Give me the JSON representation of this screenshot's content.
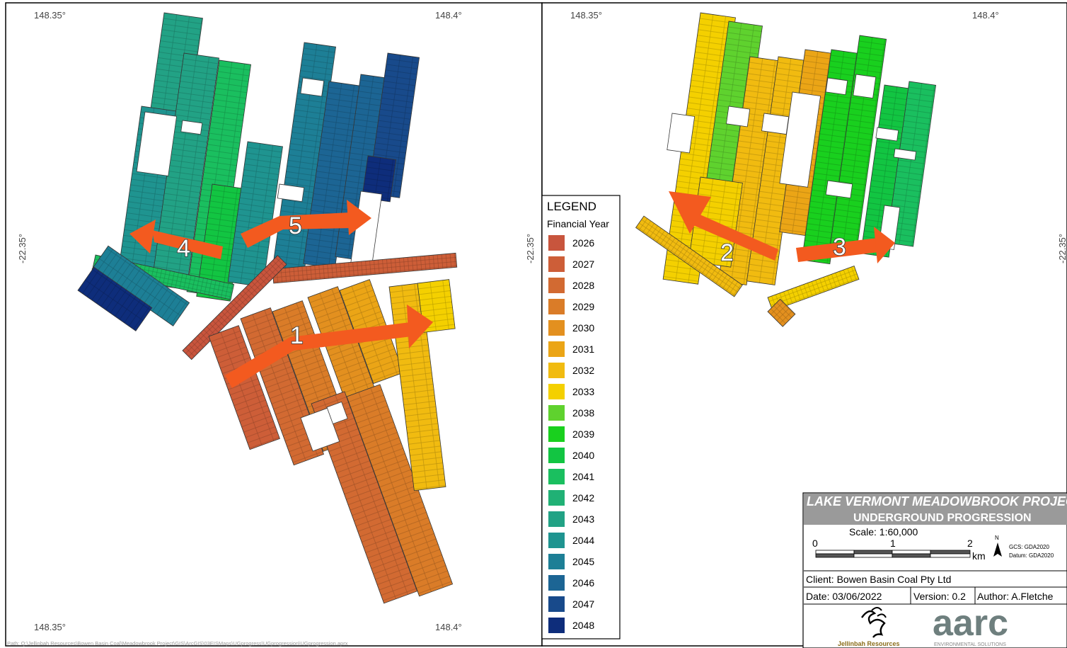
{
  "coordinate_labels": {
    "lon_left": "148.35°",
    "lon_right": "148.4°",
    "lat": "-22.35°"
  },
  "legend": {
    "title": "LEGEND",
    "subtitle": "Financial Year",
    "items": [
      {
        "year": "2026",
        "color": "#c8553d"
      },
      {
        "year": "2027",
        "color": "#cd5e38"
      },
      {
        "year": "2028",
        "color": "#d26a32"
      },
      {
        "year": "2029",
        "color": "#da7c28"
      },
      {
        "year": "2030",
        "color": "#e3901f"
      },
      {
        "year": "2031",
        "color": "#eba516"
      },
      {
        "year": "2032",
        "color": "#f1bb10"
      },
      {
        "year": "2033",
        "color": "#f4d000"
      },
      {
        "year": "2038",
        "color": "#5fd22e"
      },
      {
        "year": "2039",
        "color": "#19d01e"
      },
      {
        "year": "2040",
        "color": "#12c542"
      },
      {
        "year": "2041",
        "color": "#1abf5f"
      },
      {
        "year": "2042",
        "color": "#20b175"
      },
      {
        "year": "2043",
        "color": "#22a285"
      },
      {
        "year": "2044",
        "color": "#1f9490"
      },
      {
        "year": "2045",
        "color": "#1d7f96"
      },
      {
        "year": "2046",
        "color": "#1c6594"
      },
      {
        "year": "2047",
        "color": "#184a8b"
      },
      {
        "year": "2048",
        "color": "#0e2d7b"
      }
    ]
  },
  "arrows": [
    {
      "label": "1",
      "color": "#f35a1f"
    },
    {
      "label": "2",
      "color": "#f35a1f"
    },
    {
      "label": "3",
      "color": "#f35a1f"
    },
    {
      "label": "4",
      "color": "#f35a1f"
    },
    {
      "label": "5",
      "color": "#f35a1f"
    }
  ],
  "title_block": {
    "project_title": "LAKE VERMONT MEADOWBROOK PROJEC",
    "map_title": "UNDERGROUND PROGRESSION",
    "header_color": "#9a9a9a",
    "scale_label": "Scale: 1:60,000",
    "scale_ticks": [
      "0",
      "1",
      "2"
    ],
    "scale_unit": "km",
    "north_label": "N",
    "gcs": "GCS: GDA2020",
    "datum": "Datum: GDA2020",
    "client": "Client: Bowen Basin Coal Pty Ltd",
    "date": "Date: 03/06/2022",
    "version": "Version: 0.2",
    "author": "Author:  A.Fletche",
    "logo_jellinbah": "Jellinbah Resources",
    "logo_arc": "aarc",
    "logo_arc_tagline": "ENVIRONMENTAL SOLUTIONS"
  },
  "path_text": "Path: Q:\\Jellinbah Resources\\Bowen Basin Coal\\Meadowbrook Project\\GIS\\ArcGIS\\03EISMaps\\UGprogress\\UGprogression\\UGprogression.aprx"
}
